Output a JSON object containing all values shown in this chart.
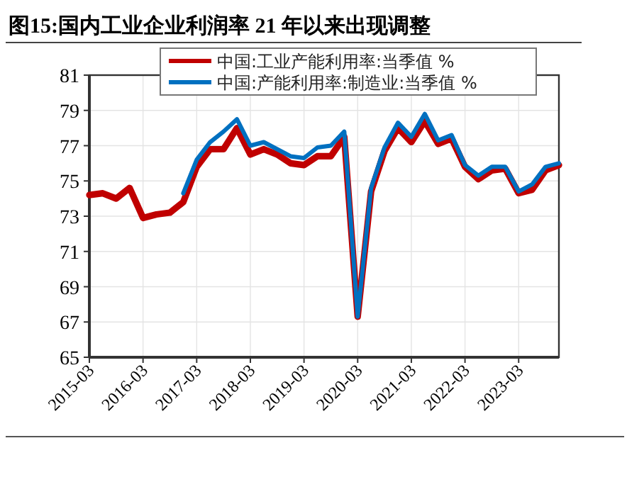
{
  "chart_data": {
    "type": "line",
    "title": "图15:国内工业企业利润率 21 年以来出现调整",
    "x": [
      "2015-03",
      "2015-06",
      "2015-09",
      "2015-12",
      "2016-03",
      "2016-06",
      "2016-09",
      "2016-12",
      "2017-03",
      "2017-06",
      "2017-09",
      "2017-12",
      "2018-03",
      "2018-06",
      "2018-09",
      "2018-12",
      "2019-03",
      "2019-06",
      "2019-09",
      "2019-12",
      "2020-03",
      "2020-06",
      "2020-09",
      "2020-12",
      "2021-03",
      "2021-06",
      "2021-09",
      "2021-12",
      "2022-03",
      "2022-06",
      "2022-09",
      "2022-12",
      "2023-03",
      "2023-06",
      "2023-09",
      "2023-12"
    ],
    "series": [
      {
        "name": "中国:工业产能利用率:当季值 %",
        "color": "#c00000",
        "values": [
          74.2,
          74.3,
          74.0,
          74.6,
          72.9,
          73.1,
          73.2,
          73.8,
          75.8,
          76.8,
          76.8,
          78.0,
          76.5,
          76.8,
          76.5,
          76.0,
          75.9,
          76.4,
          76.4,
          77.5,
          67.3,
          74.4,
          76.7,
          78.0,
          77.2,
          78.4,
          77.1,
          77.4,
          75.8,
          75.1,
          75.6,
          75.7,
          74.3,
          74.5,
          75.6,
          75.9
        ]
      },
      {
        "name": "中国:产能利用率:制造业:当季值 %",
        "color": "#0070c0",
        "values": [
          null,
          null,
          null,
          null,
          null,
          null,
          null,
          74.3,
          76.2,
          77.2,
          77.8,
          78.5,
          77.0,
          77.2,
          76.8,
          76.4,
          76.3,
          76.9,
          77.0,
          77.8,
          67.3,
          74.6,
          76.9,
          78.3,
          77.5,
          78.8,
          77.3,
          77.6,
          75.9,
          75.3,
          75.8,
          75.8,
          74.4,
          74.8,
          75.8,
          76.0
        ]
      }
    ],
    "xlim": [
      "2015-03",
      "2023-12"
    ],
    "xticks": [
      {
        "value": "2015-03",
        "label": "2015-03"
      },
      {
        "value": "2016-03",
        "label": "2016-03"
      },
      {
        "value": "2017-03",
        "label": "2017-03"
      },
      {
        "value": "2018-03",
        "label": "2018-03"
      },
      {
        "value": "2019-03",
        "label": "2019-03"
      },
      {
        "value": "2020-03",
        "label": "2020-03"
      },
      {
        "value": "2021-03",
        "label": "2021-03"
      },
      {
        "value": "2022-03",
        "label": "2022-03"
      },
      {
        "value": "2023-03",
        "label": "2023-03"
      }
    ],
    "ylim": [
      65,
      81
    ],
    "yticks": [
      65,
      67,
      69,
      71,
      73,
      75,
      77,
      79,
      81
    ],
    "grid": true,
    "legend": "top",
    "marker": "none",
    "line_style": "solid"
  }
}
